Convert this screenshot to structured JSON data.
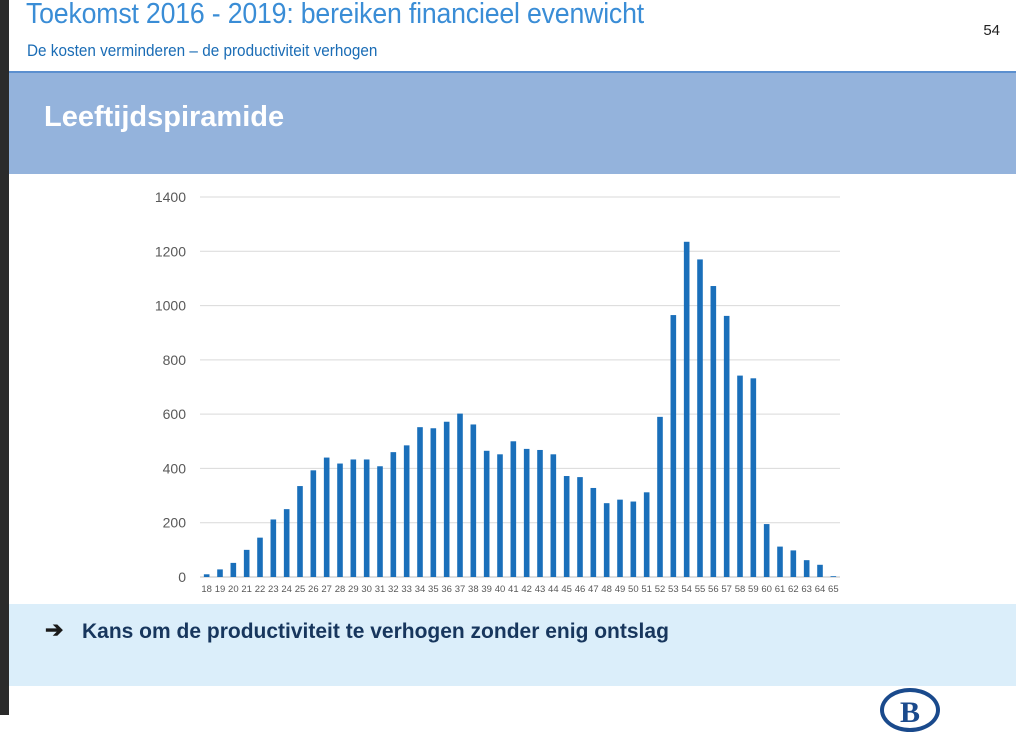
{
  "header": {
    "title": "Toekomst 2016 - 2019: bereiken financieel evenwicht",
    "subtitle": "De kosten verminderen – de productiviteit verhogen",
    "page_number": "54"
  },
  "banner": {
    "title": "Leeftijdspiramide"
  },
  "note": {
    "arrow_icon": "arrow-right-icon",
    "text": "Kans om de productiviteit te verhogen zonder enig ontslag"
  },
  "logo": {
    "letter": "B",
    "icon": "nmbs-logo"
  },
  "colors": {
    "bar": "#1a6fba",
    "banner": "#94b3dc",
    "note_bg": "#dbeefa",
    "title": "#3a8dd6"
  },
  "chart_data": {
    "type": "bar",
    "categories": [
      "18",
      "19",
      "20",
      "21",
      "22",
      "23",
      "24",
      "25",
      "26",
      "27",
      "28",
      "29",
      "30",
      "31",
      "32",
      "33",
      "34",
      "35",
      "36",
      "37",
      "38",
      "39",
      "40",
      "41",
      "42",
      "43",
      "44",
      "45",
      "46",
      "47",
      "48",
      "49",
      "50",
      "51",
      "52",
      "53",
      "54",
      "55",
      "56",
      "57",
      "58",
      "59",
      "60",
      "61",
      "62",
      "63",
      "64",
      "65"
    ],
    "values": [
      10,
      28,
      52,
      100,
      145,
      212,
      250,
      335,
      393,
      440,
      418,
      433,
      433,
      408,
      460,
      485,
      552,
      548,
      572,
      602,
      562,
      465,
      452,
      500,
      472,
      468,
      452,
      372,
      368,
      328,
      272,
      285,
      278,
      312,
      590,
      965,
      1235,
      1170,
      1072,
      962,
      742,
      732,
      195,
      112,
      98,
      62,
      45,
      3
    ],
    "title": "",
    "xlabel": "",
    "ylabel": "",
    "ylim": [
      0,
      1400
    ],
    "yticks": [
      0,
      200,
      400,
      600,
      800,
      1000,
      1200,
      1400
    ],
    "grid": true,
    "legend": "none"
  }
}
